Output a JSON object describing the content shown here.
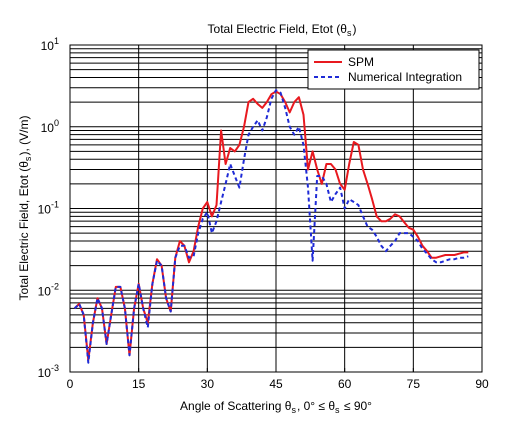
{
  "chart_data": {
    "type": "line",
    "title": "Total Electric Field, Etot (θs)",
    "xlabel": "Angle of Scattering θs, 0° ≤ θs ≤ 90°",
    "ylabel": "Total Electric Field, Etot (θs), (V/m)",
    "xlim": [
      0,
      90
    ],
    "ylim": [
      0.001,
      10
    ],
    "y_scale": "log",
    "grid": true,
    "legend_position": "top-right",
    "x_ticks": [
      "0",
      "15",
      "30",
      "45",
      "60",
      "75",
      "90"
    ],
    "y_ticks": [
      {
        "base": "10",
        "exp": "-3"
      },
      {
        "base": "10",
        "exp": "-2"
      },
      {
        "base": "10",
        "exp": "-1"
      },
      {
        "base": "10",
        "exp": "0"
      },
      {
        "base": "10",
        "exp": "1"
      }
    ],
    "series": [
      {
        "name": "SPM",
        "color": "#e8191f",
        "dash": "solid",
        "x": [
          1,
          2,
          3,
          4,
          5,
          6,
          7,
          8,
          9,
          10,
          11,
          12,
          13,
          14,
          15,
          16,
          17,
          18,
          19,
          20,
          21,
          22,
          23,
          24,
          25,
          26,
          27,
          28,
          29,
          30,
          31,
          32,
          33,
          34,
          35,
          36,
          37,
          38,
          39,
          40,
          41,
          42,
          43,
          44,
          45,
          46,
          47,
          48,
          49,
          50,
          51,
          52,
          53,
          54,
          55,
          56,
          57,
          58,
          59,
          60,
          61,
          62,
          63,
          64,
          65,
          66,
          67,
          68,
          69,
          70,
          71,
          72,
          73,
          74,
          75,
          76,
          77,
          78,
          79,
          80,
          81,
          82,
          83,
          84,
          85,
          86,
          87
        ],
        "y": [
          0.006,
          0.0068,
          0.005,
          0.0014,
          0.004,
          0.008,
          0.006,
          0.0022,
          0.005,
          0.011,
          0.011,
          0.006,
          0.0016,
          0.006,
          0.012,
          0.006,
          0.004,
          0.012,
          0.024,
          0.02,
          0.008,
          0.0055,
          0.025,
          0.04,
          0.035,
          0.022,
          0.03,
          0.06,
          0.1,
          0.12,
          0.08,
          0.11,
          0.9,
          0.35,
          0.55,
          0.5,
          0.6,
          1.0,
          2.0,
          2.2,
          1.9,
          1.7,
          2.0,
          2.5,
          2.7,
          2.5,
          2.0,
          1.5,
          2.0,
          2.3,
          1.4,
          0.3,
          0.5,
          0.3,
          0.2,
          0.35,
          0.35,
          0.3,
          0.2,
          0.17,
          0.35,
          0.65,
          0.6,
          0.3,
          0.2,
          0.13,
          0.08,
          0.07,
          0.07,
          0.075,
          0.085,
          0.08,
          0.068,
          0.058,
          0.055,
          0.045,
          0.035,
          0.03,
          0.025,
          0.025,
          0.026,
          0.027,
          0.027,
          0.027,
          0.028,
          0.029,
          0.029
        ]
      },
      {
        "name": "Numerical Integration",
        "color": "#1f2bd6",
        "dash": "dashed",
        "x": [
          1,
          2,
          3,
          4,
          5,
          6,
          7,
          8,
          9,
          10,
          11,
          12,
          13,
          14,
          15,
          16,
          17,
          18,
          19,
          20,
          21,
          22,
          23,
          24,
          25,
          26,
          27,
          28,
          29,
          30,
          31,
          32,
          33,
          34,
          35,
          36,
          37,
          38,
          39,
          40,
          41,
          42,
          43,
          44,
          45,
          46,
          47,
          48,
          49,
          50,
          51,
          52,
          53,
          54,
          55,
          56,
          57,
          58,
          59,
          60,
          61,
          62,
          63,
          64,
          65,
          66,
          67,
          68,
          69,
          70,
          71,
          72,
          73,
          74,
          75,
          76,
          77,
          78,
          79,
          80,
          81,
          82,
          83,
          84,
          85,
          86,
          87
        ],
        "y": [
          0.006,
          0.0068,
          0.005,
          0.0013,
          0.004,
          0.008,
          0.006,
          0.0022,
          0.005,
          0.011,
          0.011,
          0.006,
          0.0016,
          0.006,
          0.012,
          0.006,
          0.0035,
          0.012,
          0.023,
          0.02,
          0.008,
          0.0055,
          0.025,
          0.035,
          0.035,
          0.025,
          0.026,
          0.05,
          0.075,
          0.09,
          0.05,
          0.07,
          0.12,
          0.2,
          0.35,
          0.25,
          0.18,
          0.4,
          0.8,
          1.0,
          1.2,
          0.9,
          1.3,
          2.2,
          2.8,
          2.6,
          1.7,
          1.0,
          0.8,
          1.0,
          0.6,
          0.18,
          0.023,
          0.25,
          0.25,
          0.2,
          0.12,
          0.15,
          0.18,
          0.1,
          0.13,
          0.12,
          0.11,
          0.08,
          0.06,
          0.055,
          0.045,
          0.035,
          0.03,
          0.035,
          0.04,
          0.05,
          0.05,
          0.05,
          0.045,
          0.04,
          0.032,
          0.028,
          0.024,
          0.022,
          0.022,
          0.023,
          0.024,
          0.024,
          0.025,
          0.025,
          0.026
        ]
      }
    ]
  }
}
